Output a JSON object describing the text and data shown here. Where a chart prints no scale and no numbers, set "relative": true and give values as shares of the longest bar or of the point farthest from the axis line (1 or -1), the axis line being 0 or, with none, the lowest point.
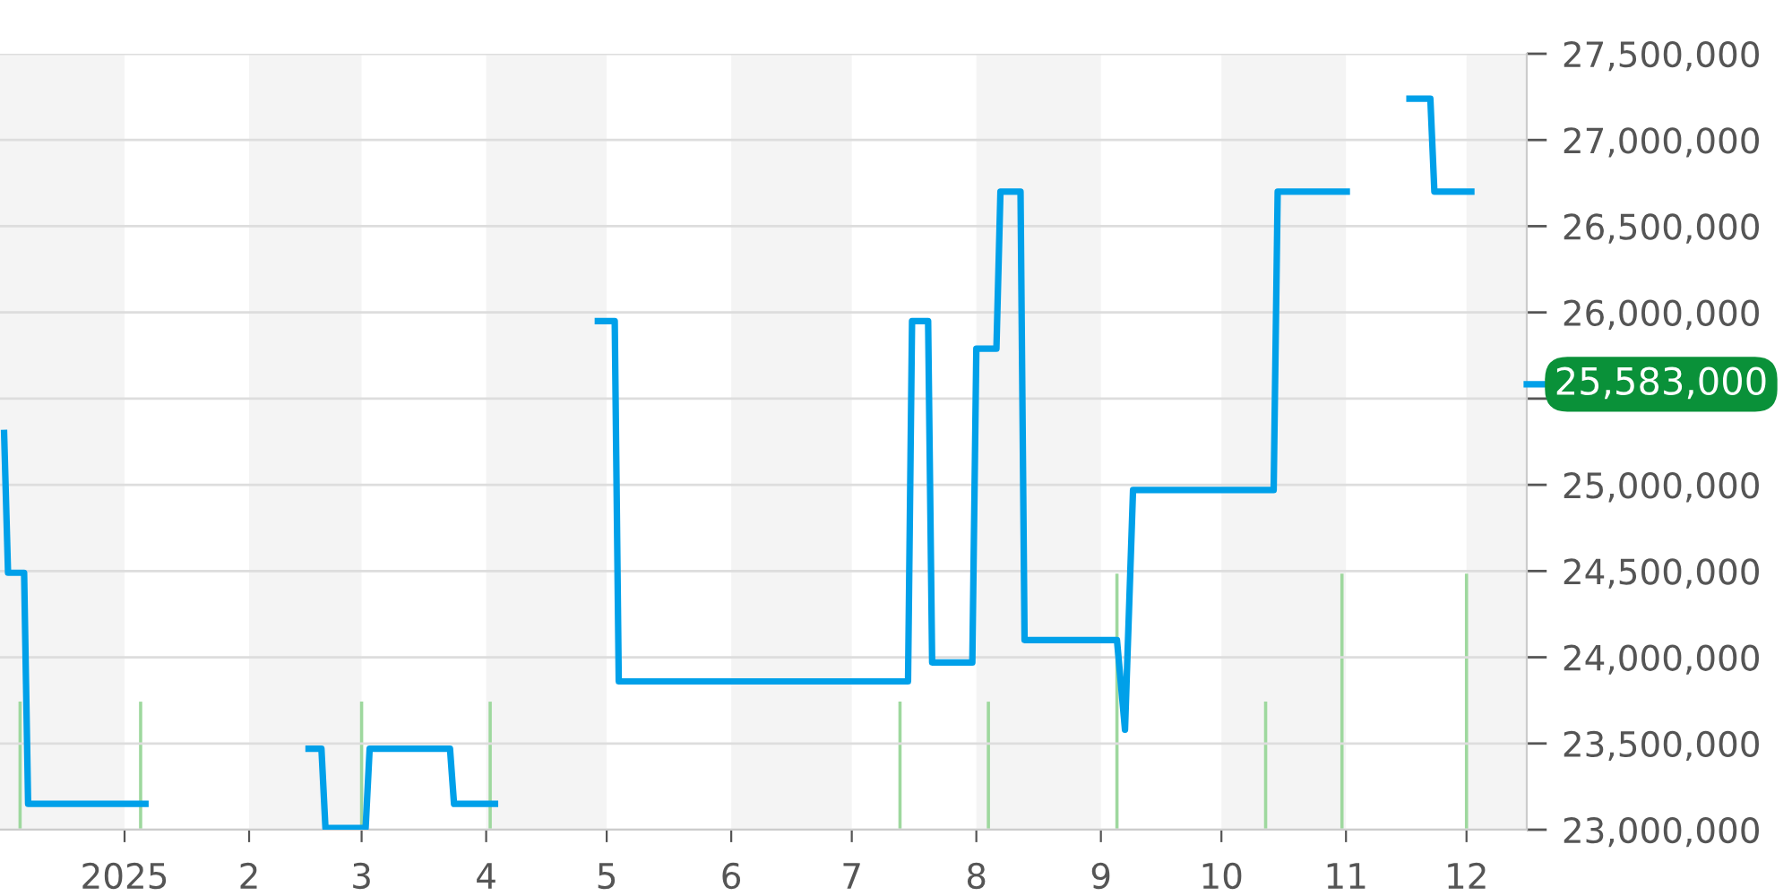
{
  "chart_data": [
    {
      "type": "line",
      "series": [
        {
          "color": "#00a0e9",
          "x": [
            "2024-12-02",
            "2024-12-03",
            "2024-12-07",
            "2024-12-08",
            "2025-01-07",
            "2025-01-20",
            "2025-02-15",
            "2025-02-19",
            "2025-02-20",
            "2025-03-02",
            "2025-03-03",
            "2025-03-23",
            "2025-03-24",
            "2025-04-04",
            "2025-04-15",
            "2025-04-28",
            "2025-05-03",
            "2025-05-04",
            "2025-07-15",
            "2025-07-16",
            "2025-07-20",
            "2025-07-21",
            "2025-07-31",
            "2025-08-01",
            "2025-08-06",
            "2025-08-07",
            "2025-08-12",
            "2025-08-13",
            "2025-09-05",
            "2025-09-07",
            "2025-09-09",
            "2025-10-14",
            "2025-10-15",
            "2025-11-02",
            "2025-11-08",
            "2025-11-16",
            "2025-11-22",
            "2025-11-23",
            "2025-12-03"
          ],
          "values": [
            25320000,
            24490000,
            24490000,
            23150000,
            23150000,
            null,
            23470000,
            23470000,
            23010000,
            23010000,
            23470000,
            23470000,
            23150000,
            23150000,
            null,
            25950000,
            25950000,
            23860000,
            23860000,
            25950000,
            25950000,
            23970000,
            23970000,
            25790000,
            25790000,
            26700000,
            26700000,
            24100000,
            24100000,
            23580000,
            24970000,
            24970000,
            26700000,
            26700000,
            null,
            27240000,
            27240000,
            26700000,
            26700000
          ]
        }
      ],
      "xlim": [
        "2024-12-01",
        "2025-12-16"
      ],
      "xticks": [
        {
          "value": "2025-01-01",
          "label": "2025"
        },
        {
          "value": "2025-02-01",
          "label": "2"
        },
        {
          "value": "2025-03-01",
          "label": "3"
        },
        {
          "value": "2025-04-01",
          "label": "4"
        },
        {
          "value": "2025-05-01",
          "label": "5"
        },
        {
          "value": "2025-06-01",
          "label": "6"
        },
        {
          "value": "2025-07-01",
          "label": "7"
        },
        {
          "value": "2025-08-01",
          "label": "8"
        },
        {
          "value": "2025-09-01",
          "label": "9"
        },
        {
          "value": "2025-10-01",
          "label": "10"
        },
        {
          "value": "2025-11-01",
          "label": "11"
        },
        {
          "value": "2025-12-01",
          "label": "12"
        }
      ],
      "ylim": [
        23000000,
        27500000
      ],
      "yticks": [
        {
          "value": 23000000,
          "label": "23,000,000"
        },
        {
          "value": 23500000,
          "label": "23,500,000"
        },
        {
          "value": 24000000,
          "label": "24,000,000"
        },
        {
          "value": 24500000,
          "label": "24,500,000"
        },
        {
          "value": 25000000,
          "label": "25,000,000"
        },
        {
          "value": 25500000,
          "label": null
        },
        {
          "value": 26000000,
          "label": "26,000,000"
        },
        {
          "value": 26500000,
          "label": "26,500,000"
        },
        {
          "value": 27000000,
          "label": "27,000,000"
        },
        {
          "value": 27500000,
          "label": "27,500,000"
        }
      ],
      "grid": "y",
      "annotations": [
        "25,583,000"
      ],
      "bands": [
        {
          "axis": "x",
          "from": "2024-12-01",
          "to": "2025-01-01",
          "color": "#f4f4f4"
        },
        {
          "axis": "x",
          "from": "2025-02-01",
          "to": "2025-03-01",
          "color": "#f4f4f4"
        },
        {
          "axis": "x",
          "from": "2025-04-01",
          "to": "2025-05-01",
          "color": "#f4f4f4"
        },
        {
          "axis": "x",
          "from": "2025-06-01",
          "to": "2025-07-01",
          "color": "#f4f4f4"
        },
        {
          "axis": "x",
          "from": "2025-08-01",
          "to": "2025-09-01",
          "color": "#f4f4f4"
        },
        {
          "axis": "x",
          "from": "2025-10-01",
          "to": "2025-11-01",
          "color": "#f4f4f4"
        },
        {
          "axis": "x",
          "from": "2025-12-01",
          "to": "2025-12-16",
          "color": "#f4f4f4"
        }
      ]
    },
    {
      "type": "bar",
      "relative": true,
      "xlim": [
        "2024-12-01",
        "2025-12-16"
      ],
      "series": [
        {
          "color": "#9ed89e",
          "x": [
            "2024-12-06",
            "2025-01-05",
            "2025-03-01",
            "2025-04-02",
            "2025-07-13",
            "2025-08-04",
            "2025-09-05",
            "2025-10-12",
            "2025-10-31",
            "2025-12-01"
          ],
          "values": [
            0.5,
            0.5,
            0.5,
            0.5,
            0.5,
            0.5,
            1,
            0.5,
            1,
            1
          ]
        }
      ]
    }
  ]
}
